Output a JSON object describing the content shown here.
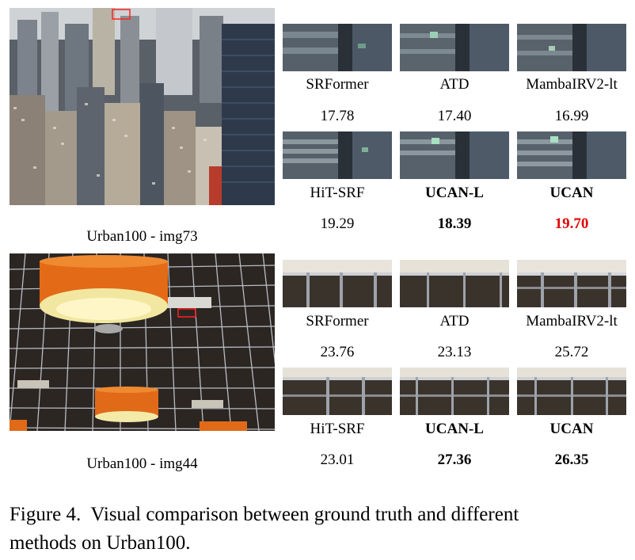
{
  "figure": {
    "caption": "Figure 4. Visual comparison between ground truth and different methods on Urban100.",
    "caption_line1": "Figure 4.  Visual comparison between ground truth and different",
    "caption_line2": "methods on Urban100."
  },
  "rows": [
    {
      "image_label": "Urban100 - img73",
      "methods_top": [
        {
          "name": "SRFormer",
          "psnr": "17.78",
          "style": "normal"
        },
        {
          "name": "ATD",
          "psnr": "17.40",
          "style": "normal"
        },
        {
          "name": "MambaIRV2-lt",
          "psnr": "16.99",
          "style": "normal"
        }
      ],
      "methods_bottom": [
        {
          "name": "HiT-SRF",
          "psnr": "19.29",
          "style": "normal"
        },
        {
          "name": "UCAN-L",
          "psnr": "18.39",
          "style": "bold"
        },
        {
          "name": "UCAN",
          "psnr": "19.70",
          "style": "bold-red"
        }
      ]
    },
    {
      "image_label": "Urban100 - img44",
      "methods_top": [
        {
          "name": "SRFormer",
          "psnr": "23.76",
          "style": "normal"
        },
        {
          "name": "ATD",
          "psnr": "23.13",
          "style": "normal"
        },
        {
          "name": "MambaIRV2-lt",
          "psnr": "25.72",
          "style": "normal"
        }
      ],
      "methods_bottom": [
        {
          "name": "HiT-SRF",
          "psnr": "23.01",
          "style": "normal"
        },
        {
          "name": "UCAN-L",
          "psnr": "27.36",
          "style": "bold"
        },
        {
          "name": "UCAN",
          "psnr": "26.35",
          "style": "bold"
        }
      ]
    }
  ],
  "colors": {
    "highlight_red": "#e00000",
    "box_red": "#ff2020"
  }
}
